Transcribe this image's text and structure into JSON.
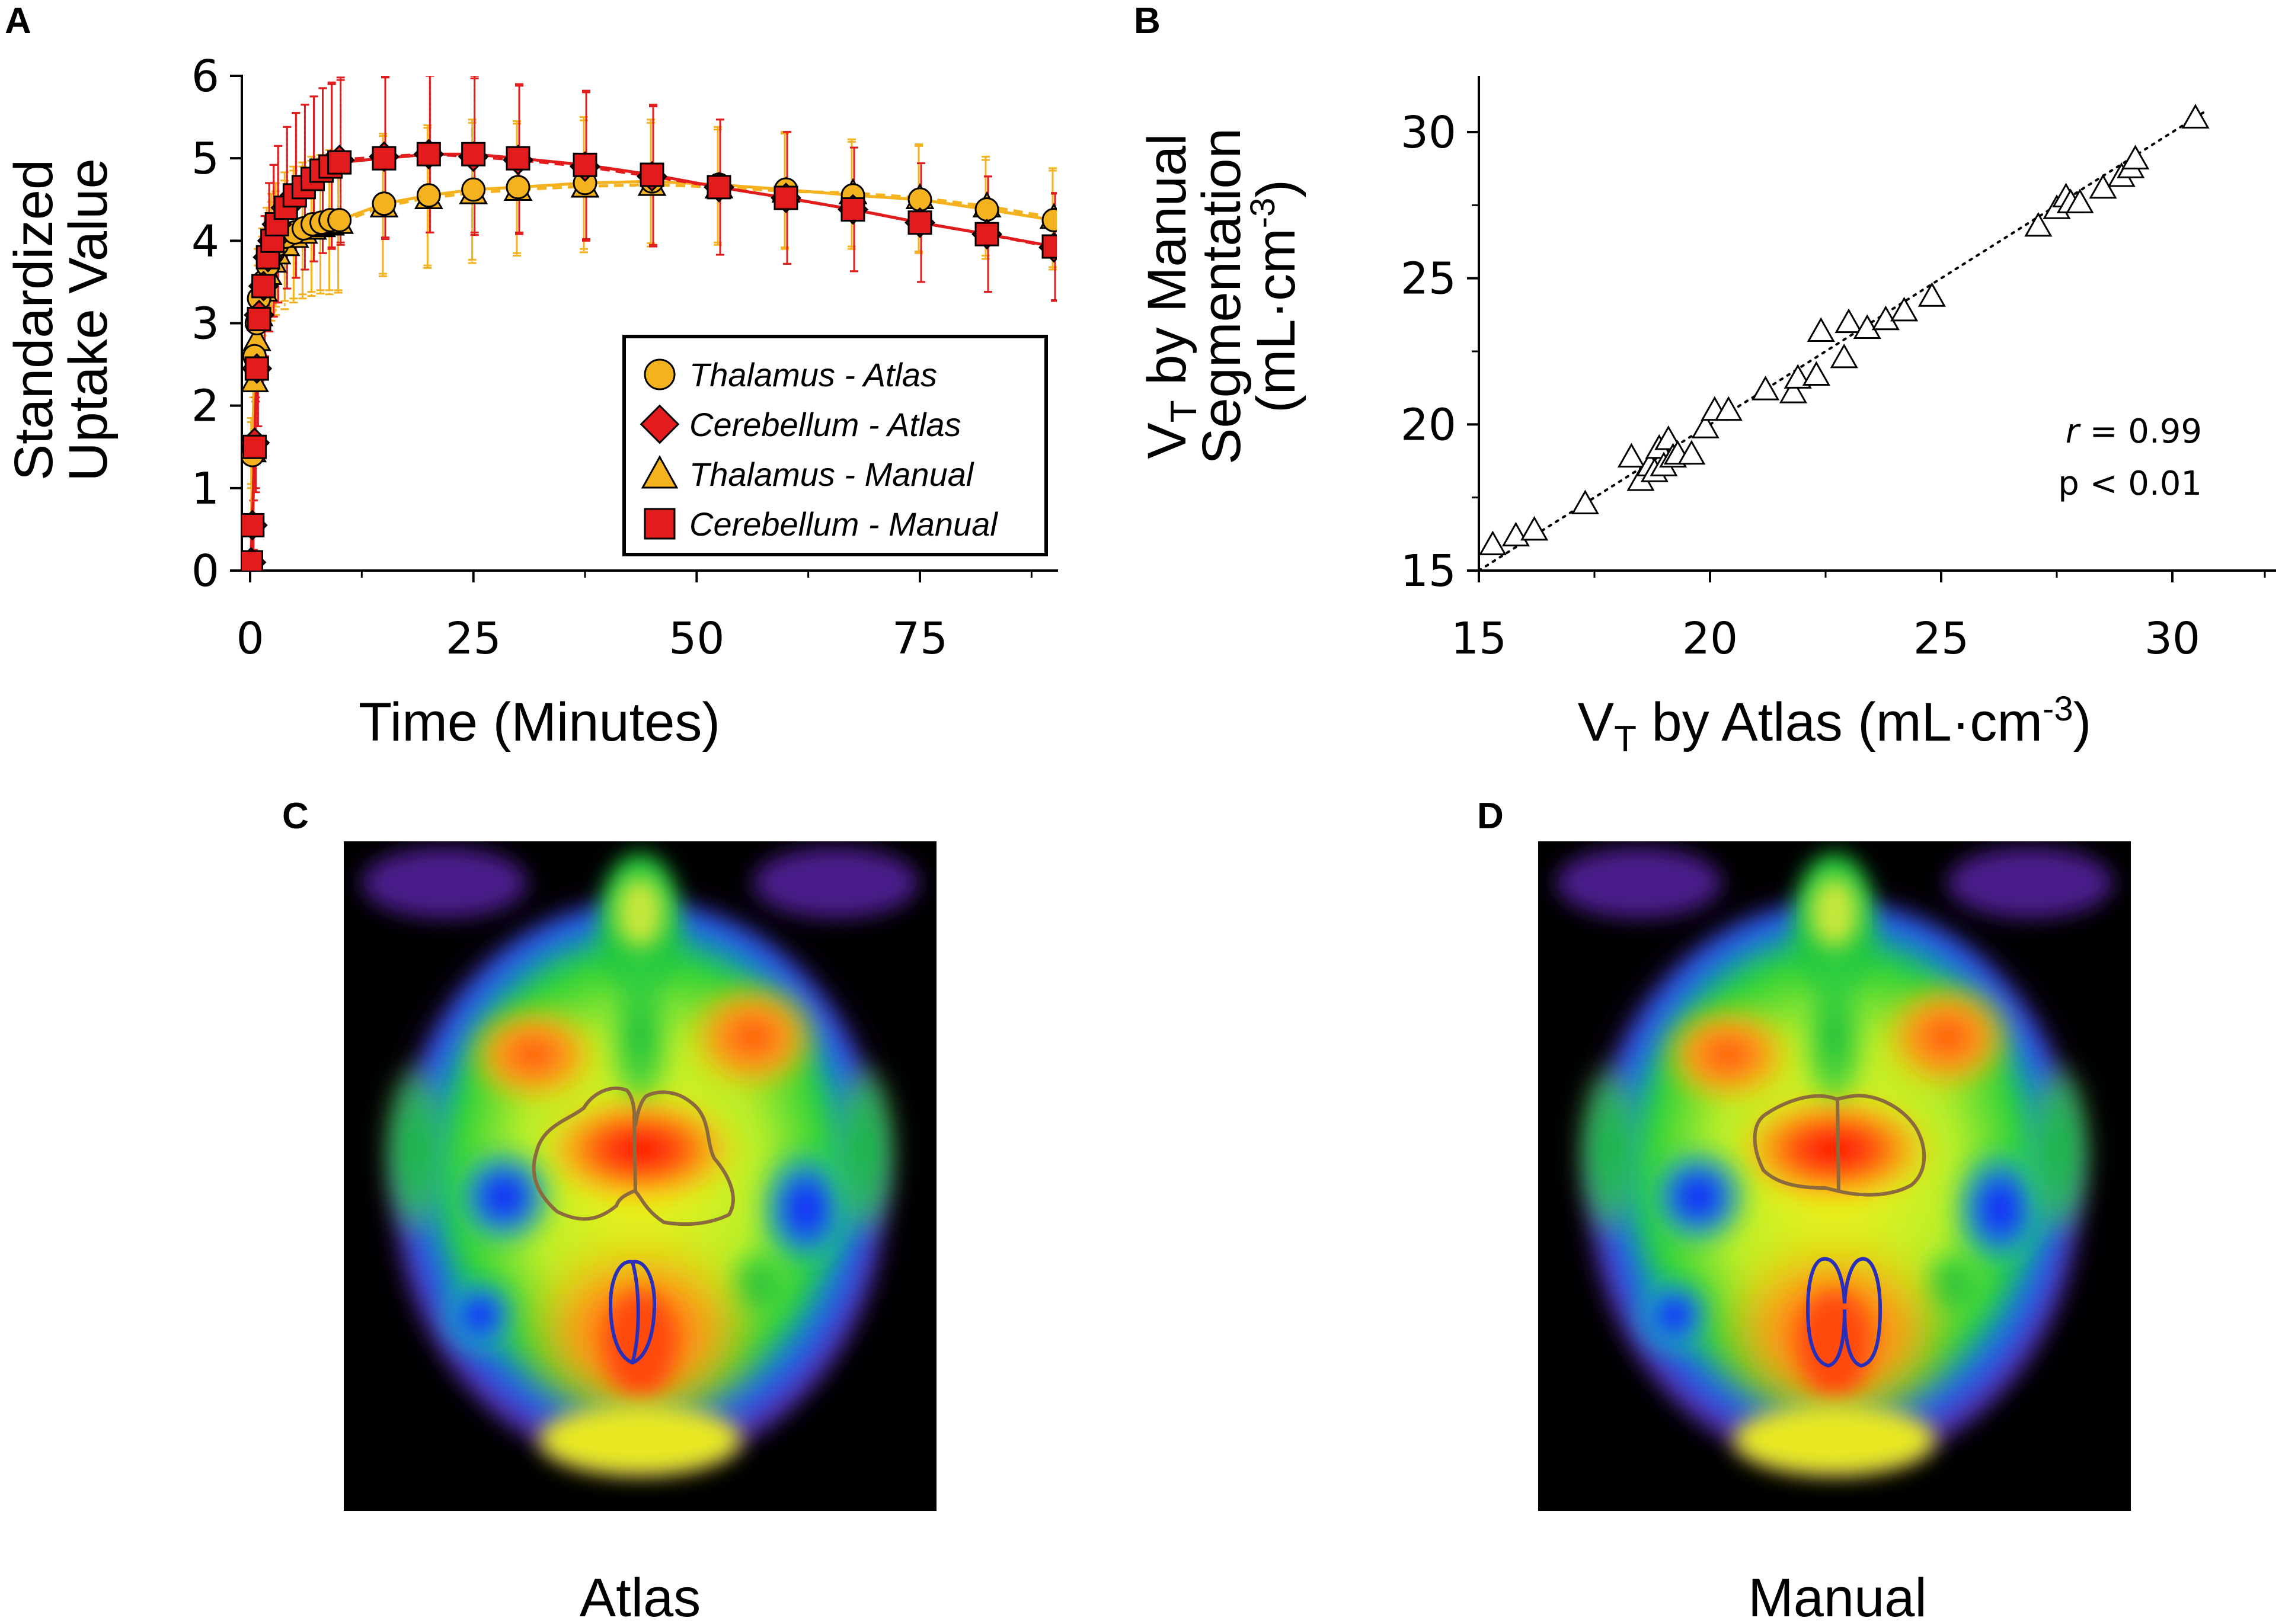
{
  "panels": {
    "a": "A",
    "b": "B",
    "c": "C",
    "d": "D"
  },
  "image_captions": {
    "c": "Atlas",
    "d": "Manual"
  },
  "colors": {
    "thalamus": "#f4b21f",
    "cerebellum": "#e21c1c",
    "thalamus_roi": "#8b6a3e",
    "cerebellum_roi": "#2a2fb8"
  },
  "chart_data": [
    {
      "type": "line",
      "title": "",
      "xlabel": "Time (Minutes)",
      "ylabel_lines": [
        "Standardized",
        "Uptake Value"
      ],
      "xlim": [
        -2,
        90
      ],
      "ylim": [
        0,
        6
      ],
      "xticks": [
        0,
        25,
        50,
        75
      ],
      "yticks": [
        0,
        1,
        2,
        3,
        4,
        5,
        6
      ],
      "legend_position": "lower-right",
      "x": [
        0.1,
        0.25,
        0.5,
        0.75,
        1,
        1.5,
        2,
        2.5,
        3,
        4,
        5,
        6,
        7,
        8,
        9,
        10,
        15,
        20,
        25,
        30,
        37.5,
        45,
        52.5,
        60,
        67.5,
        75,
        82.5,
        90
      ],
      "series": [
        {
          "name": "Thalamus - Atlas",
          "marker": "circle",
          "line": "solid",
          "values": [
            0.1,
            1.4,
            2.6,
            3.0,
            3.3,
            3.5,
            3.7,
            3.85,
            3.95,
            4.05,
            4.1,
            4.15,
            4.2,
            4.22,
            4.25,
            4.25,
            4.45,
            4.55,
            4.62,
            4.65,
            4.7,
            4.72,
            4.68,
            4.62,
            4.55,
            4.5,
            4.38,
            4.25
          ],
          "errors": [
            0.1,
            0.4,
            0.5,
            0.55,
            0.6,
            0.65,
            0.7,
            0.72,
            0.75,
            0.78,
            0.8,
            0.8,
            0.82,
            0.82,
            0.85,
            0.85,
            0.85,
            0.85,
            0.85,
            0.8,
            0.8,
            0.75,
            0.7,
            0.7,
            0.65,
            0.65,
            0.6,
            0.6
          ]
        },
        {
          "name": "Cerebellum - Atlas",
          "marker": "diamond",
          "line": "dashed",
          "values": [
            0.1,
            0.55,
            1.55,
            2.45,
            3.1,
            3.45,
            3.8,
            4.0,
            4.2,
            4.4,
            4.55,
            4.65,
            4.75,
            4.85,
            4.92,
            4.98,
            5.02,
            5.05,
            5.02,
            4.98,
            4.9,
            4.78,
            4.65,
            4.52,
            4.38,
            4.22,
            4.08,
            3.92
          ],
          "errors": [
            0.1,
            0.3,
            0.55,
            0.7,
            0.8,
            0.85,
            0.9,
            0.92,
            0.95,
            0.98,
            1.0,
            1.0,
            1.0,
            1.0,
            1.0,
            1.0,
            0.98,
            0.95,
            0.95,
            0.9,
            0.9,
            0.85,
            0.82,
            0.8,
            0.75,
            0.72,
            0.7,
            0.65
          ]
        },
        {
          "name": "Thalamus - Manual",
          "marker": "triangle",
          "line": "dashed",
          "values": [
            0.1,
            1.45,
            2.3,
            2.8,
            3.1,
            3.4,
            3.6,
            3.75,
            3.85,
            3.95,
            4.05,
            4.1,
            4.15,
            4.18,
            4.2,
            4.22,
            4.42,
            4.52,
            4.58,
            4.62,
            4.66,
            4.68,
            4.65,
            4.6,
            4.58,
            4.52,
            4.42,
            4.28
          ],
          "errors": [
            0.1,
            0.4,
            0.5,
            0.55,
            0.6,
            0.65,
            0.7,
            0.72,
            0.75,
            0.78,
            0.8,
            0.8,
            0.82,
            0.82,
            0.85,
            0.85,
            0.85,
            0.85,
            0.85,
            0.8,
            0.8,
            0.75,
            0.7,
            0.7,
            0.65,
            0.65,
            0.6,
            0.6
          ]
        },
        {
          "name": "Cerebellum - Manual",
          "marker": "square",
          "line": "solid",
          "values": [
            0.1,
            0.55,
            1.5,
            2.45,
            3.05,
            3.45,
            3.8,
            4.0,
            4.2,
            4.4,
            4.55,
            4.65,
            4.75,
            4.85,
            4.9,
            4.95,
            5.0,
            5.05,
            5.05,
            5.0,
            4.92,
            4.8,
            4.65,
            4.52,
            4.38,
            4.22,
            4.08,
            3.93
          ],
          "errors": [
            0.1,
            0.3,
            0.55,
            0.7,
            0.8,
            0.85,
            0.9,
            0.92,
            0.95,
            0.98,
            1.0,
            1.0,
            1.0,
            1.0,
            1.0,
            1.0,
            0.98,
            0.95,
            0.95,
            0.9,
            0.9,
            0.85,
            0.82,
            0.8,
            0.75,
            0.72,
            0.7,
            0.65
          ]
        }
      ]
    },
    {
      "type": "scatter",
      "title": "",
      "xlabel_parts": [
        "V",
        "T",
        " by Atlas (mL·cm",
        "-3",
        ")"
      ],
      "ylabel_line1": [
        "V",
        "T",
        " by Manual"
      ],
      "ylabel_line2": "Segmentation",
      "ylabel_line3": [
        "(mL·cm",
        "-3",
        ")"
      ],
      "xlim": [
        15,
        32
      ],
      "ylim": [
        15,
        32
      ],
      "xticks": [
        15,
        20,
        25,
        30
      ],
      "yticks": [
        15,
        20,
        25,
        30
      ],
      "r_symbol": "r",
      "r_text": " = 0.99",
      "p_text": "p < 0.01",
      "trendline": {
        "slope": 1.0,
        "intercept": 0.0,
        "style": "dotted"
      },
      "x": [
        15.3,
        15.8,
        16.2,
        17.3,
        18.3,
        18.5,
        18.7,
        18.8,
        18.9,
        19.0,
        19.1,
        19.2,
        19.3,
        19.6,
        19.9,
        20.1,
        20.4,
        21.2,
        21.8,
        21.9,
        22.3,
        22.4,
        22.9,
        23.0,
        23.4,
        23.8,
        24.2,
        24.8,
        27.1,
        27.5,
        27.7,
        27.8,
        28.0,
        28.5,
        28.9,
        29.1,
        29.2,
        30.5
      ],
      "y": [
        15.9,
        16.2,
        16.4,
        17.3,
        18.9,
        18.1,
        18.6,
        18.4,
        19.2,
        18.6,
        19.5,
        18.9,
        19.0,
        19.0,
        19.9,
        20.5,
        20.5,
        21.2,
        21.1,
        21.6,
        21.7,
        23.2,
        22.3,
        23.5,
        23.3,
        23.6,
        23.9,
        24.4,
        26.8,
        27.4,
        27.8,
        27.6,
        27.6,
        28.1,
        28.5,
        28.8,
        29.1,
        30.5
      ]
    }
  ]
}
